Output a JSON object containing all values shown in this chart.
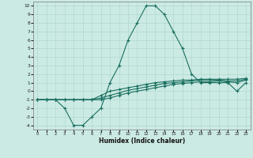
{
  "xlabel": "Humidex (Indice chaleur)",
  "bg_color": "#cceae4",
  "grid_color": "#b0d8d0",
  "line_color": "#1a7060",
  "xlim": [
    -0.5,
    23.5
  ],
  "ylim": [
    -4.5,
    10.5
  ],
  "xticks": [
    0,
    1,
    2,
    3,
    4,
    5,
    6,
    7,
    8,
    9,
    10,
    11,
    12,
    13,
    14,
    15,
    16,
    17,
    18,
    19,
    20,
    21,
    22,
    23
  ],
  "yticks": [
    -4,
    -3,
    -2,
    -1,
    0,
    1,
    2,
    3,
    4,
    5,
    6,
    7,
    8,
    9,
    10
  ],
  "curve1_x": [
    0,
    1,
    2,
    3,
    4,
    5,
    6,
    7,
    8,
    9,
    10,
    11,
    12,
    13,
    14,
    15,
    16,
    17,
    18,
    19,
    20,
    21,
    22,
    23
  ],
  "curve1_y": [
    -1,
    -1,
    -1,
    -2,
    -4,
    -4,
    -3,
    -2,
    1,
    3,
    6,
    8,
    10,
    10,
    9,
    7,
    5,
    2,
    1,
    1,
    1,
    1,
    0,
    1
  ],
  "curve2_x": [
    0,
    1,
    2,
    3,
    4,
    5,
    6,
    7,
    8,
    9,
    10,
    11,
    12,
    13,
    14,
    15,
    16,
    17,
    18,
    19,
    20,
    21,
    22,
    23
  ],
  "curve2_y": [
    -1,
    -1,
    -1,
    -1,
    -1,
    -1,
    -1,
    -0.5,
    0,
    0.2,
    0.4,
    0.6,
    0.8,
    1.0,
    1.1,
    1.2,
    1.3,
    1.3,
    1.4,
    1.4,
    1.4,
    1.4,
    1.4,
    1.5
  ],
  "curve3_x": [
    0,
    1,
    2,
    3,
    4,
    5,
    6,
    7,
    8,
    9,
    10,
    11,
    12,
    13,
    14,
    15,
    16,
    17,
    18,
    19,
    20,
    21,
    22,
    23
  ],
  "curve3_y": [
    -1,
    -1,
    -1,
    -1,
    -1,
    -1,
    -1,
    -0.8,
    -0.5,
    -0.2,
    0.1,
    0.3,
    0.5,
    0.7,
    0.9,
    1.0,
    1.1,
    1.2,
    1.3,
    1.3,
    1.3,
    1.2,
    1.2,
    1.4
  ],
  "curve4_x": [
    0,
    1,
    2,
    3,
    4,
    5,
    6,
    7,
    8,
    9,
    10,
    11,
    12,
    13,
    14,
    15,
    16,
    17,
    18,
    19,
    20,
    21,
    22,
    23
  ],
  "curve4_y": [
    -1,
    -1,
    -1,
    -1,
    -1,
    -1,
    -1,
    -1,
    -0.8,
    -0.5,
    -0.2,
    0.0,
    0.2,
    0.4,
    0.6,
    0.8,
    0.9,
    1.0,
    1.1,
    1.1,
    1.2,
    1.1,
    1.0,
    1.3
  ]
}
